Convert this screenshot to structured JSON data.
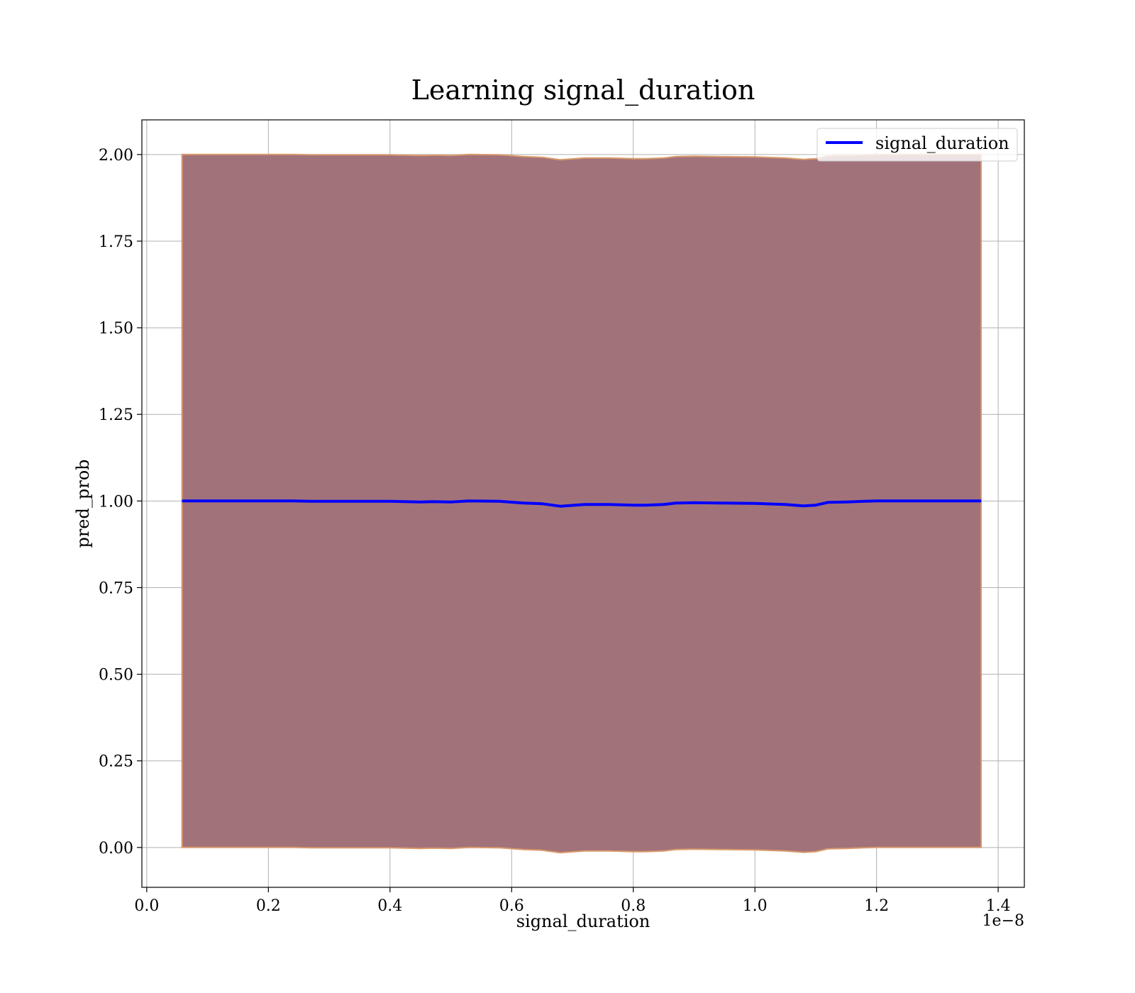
{
  "chart_data": {
    "type": "line",
    "title": "Learning signal_duration",
    "xlabel": "signal_duration",
    "ylabel": "pred_prob",
    "x_offset_label": "1e−8",
    "x_scale": 1e-08,
    "xlim": [
      -0.008,
      1.443
    ],
    "ylim": [
      -0.115,
      2.1
    ],
    "grid": true,
    "legend_position": "top-right",
    "x_ticks": [
      {
        "v": 0.0,
        "label": "0.0"
      },
      {
        "v": 0.2,
        "label": "0.2"
      },
      {
        "v": 0.4,
        "label": "0.4"
      },
      {
        "v": 0.6,
        "label": "0.6"
      },
      {
        "v": 0.8,
        "label": "0.8"
      },
      {
        "v": 1.0,
        "label": "1.0"
      },
      {
        "v": 1.2,
        "label": "1.2"
      },
      {
        "v": 1.4,
        "label": "1.4"
      }
    ],
    "y_ticks": [
      {
        "v": 0.0,
        "label": "0.00"
      },
      {
        "v": 0.25,
        "label": "0.25"
      },
      {
        "v": 0.5,
        "label": "0.50"
      },
      {
        "v": 0.75,
        "label": "0.75"
      },
      {
        "v": 1.0,
        "label": "1.00"
      },
      {
        "v": 1.25,
        "label": "1.25"
      },
      {
        "v": 1.5,
        "label": "1.50"
      },
      {
        "v": 1.75,
        "label": "1.75"
      },
      {
        "v": 2.0,
        "label": "2.00"
      }
    ],
    "series": [
      {
        "name": "signal_duration",
        "color": "#0000ff",
        "x": [
          0.058,
          0.1,
          0.15,
          0.2,
          0.24,
          0.27,
          0.3,
          0.35,
          0.4,
          0.45,
          0.47,
          0.5,
          0.53,
          0.58,
          0.62,
          0.65,
          0.68,
          0.72,
          0.76,
          0.8,
          0.82,
          0.85,
          0.87,
          0.9,
          0.95,
          1.0,
          1.05,
          1.08,
          1.1,
          1.12,
          1.15,
          1.18,
          1.2,
          1.25,
          1.3,
          1.372
        ],
        "y": [
          1.0,
          1.0,
          1.0,
          1.0,
          1.0,
          0.999,
          0.999,
          0.999,
          0.999,
          0.997,
          0.998,
          0.997,
          1.0,
          0.999,
          0.994,
          0.992,
          0.985,
          0.99,
          0.99,
          0.988,
          0.988,
          0.99,
          0.994,
          0.995,
          0.994,
          0.993,
          0.99,
          0.986,
          0.988,
          0.996,
          0.997,
          0.999,
          1.0,
          1.0,
          1.0,
          1.0
        ]
      }
    ],
    "band": {
      "fill_color": "#a2727a",
      "edge_color": "#d99a6c",
      "upper": [
        2.0,
        2.0,
        2.0,
        2.0,
        2.0,
        1.999,
        1.999,
        1.999,
        1.999,
        1.997,
        1.998,
        1.997,
        2.0,
        1.999,
        1.994,
        1.992,
        1.985,
        1.99,
        1.99,
        1.988,
        1.988,
        1.99,
        1.994,
        1.995,
        1.994,
        1.993,
        1.99,
        1.986,
        1.988,
        1.996,
        1.997,
        1.999,
        2.0,
        2.0,
        2.0,
        2.0
      ],
      "lower": [
        0.0,
        0.0,
        0.0,
        0.0,
        0.0,
        -0.001,
        -0.001,
        -0.001,
        -0.001,
        -0.003,
        -0.002,
        -0.003,
        0.0,
        -0.001,
        -0.006,
        -0.008,
        -0.015,
        -0.01,
        -0.01,
        -0.012,
        -0.012,
        -0.01,
        -0.006,
        -0.005,
        -0.006,
        -0.007,
        -0.01,
        -0.014,
        -0.012,
        -0.004,
        -0.003,
        -0.001,
        0.0,
        0.0,
        0.0,
        0.0
      ]
    }
  }
}
